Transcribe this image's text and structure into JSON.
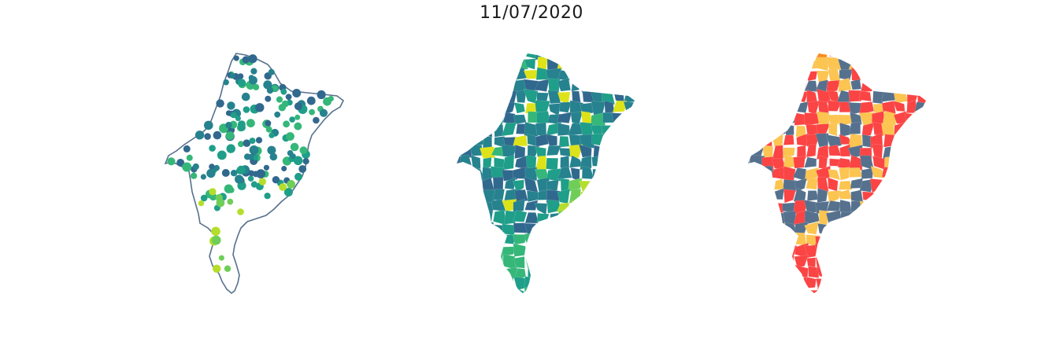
{
  "title": "11/07/2020",
  "colors": {
    "outline": "#56718d",
    "viridis": [
      "#443983",
      "#31688e",
      "#26828e",
      "#1f9e89",
      "#35b779",
      "#6ece58",
      "#b5de2b",
      "#dde318"
    ],
    "risk": [
      "#56718d",
      "#fcc451",
      "#fb4444",
      "#fb8c1c"
    ]
  },
  "panels": [
    {
      "kind": "proportional-points"
    },
    {
      "kind": "choropleth-viridis"
    },
    {
      "kind": "choropleth-risk"
    }
  ]
}
